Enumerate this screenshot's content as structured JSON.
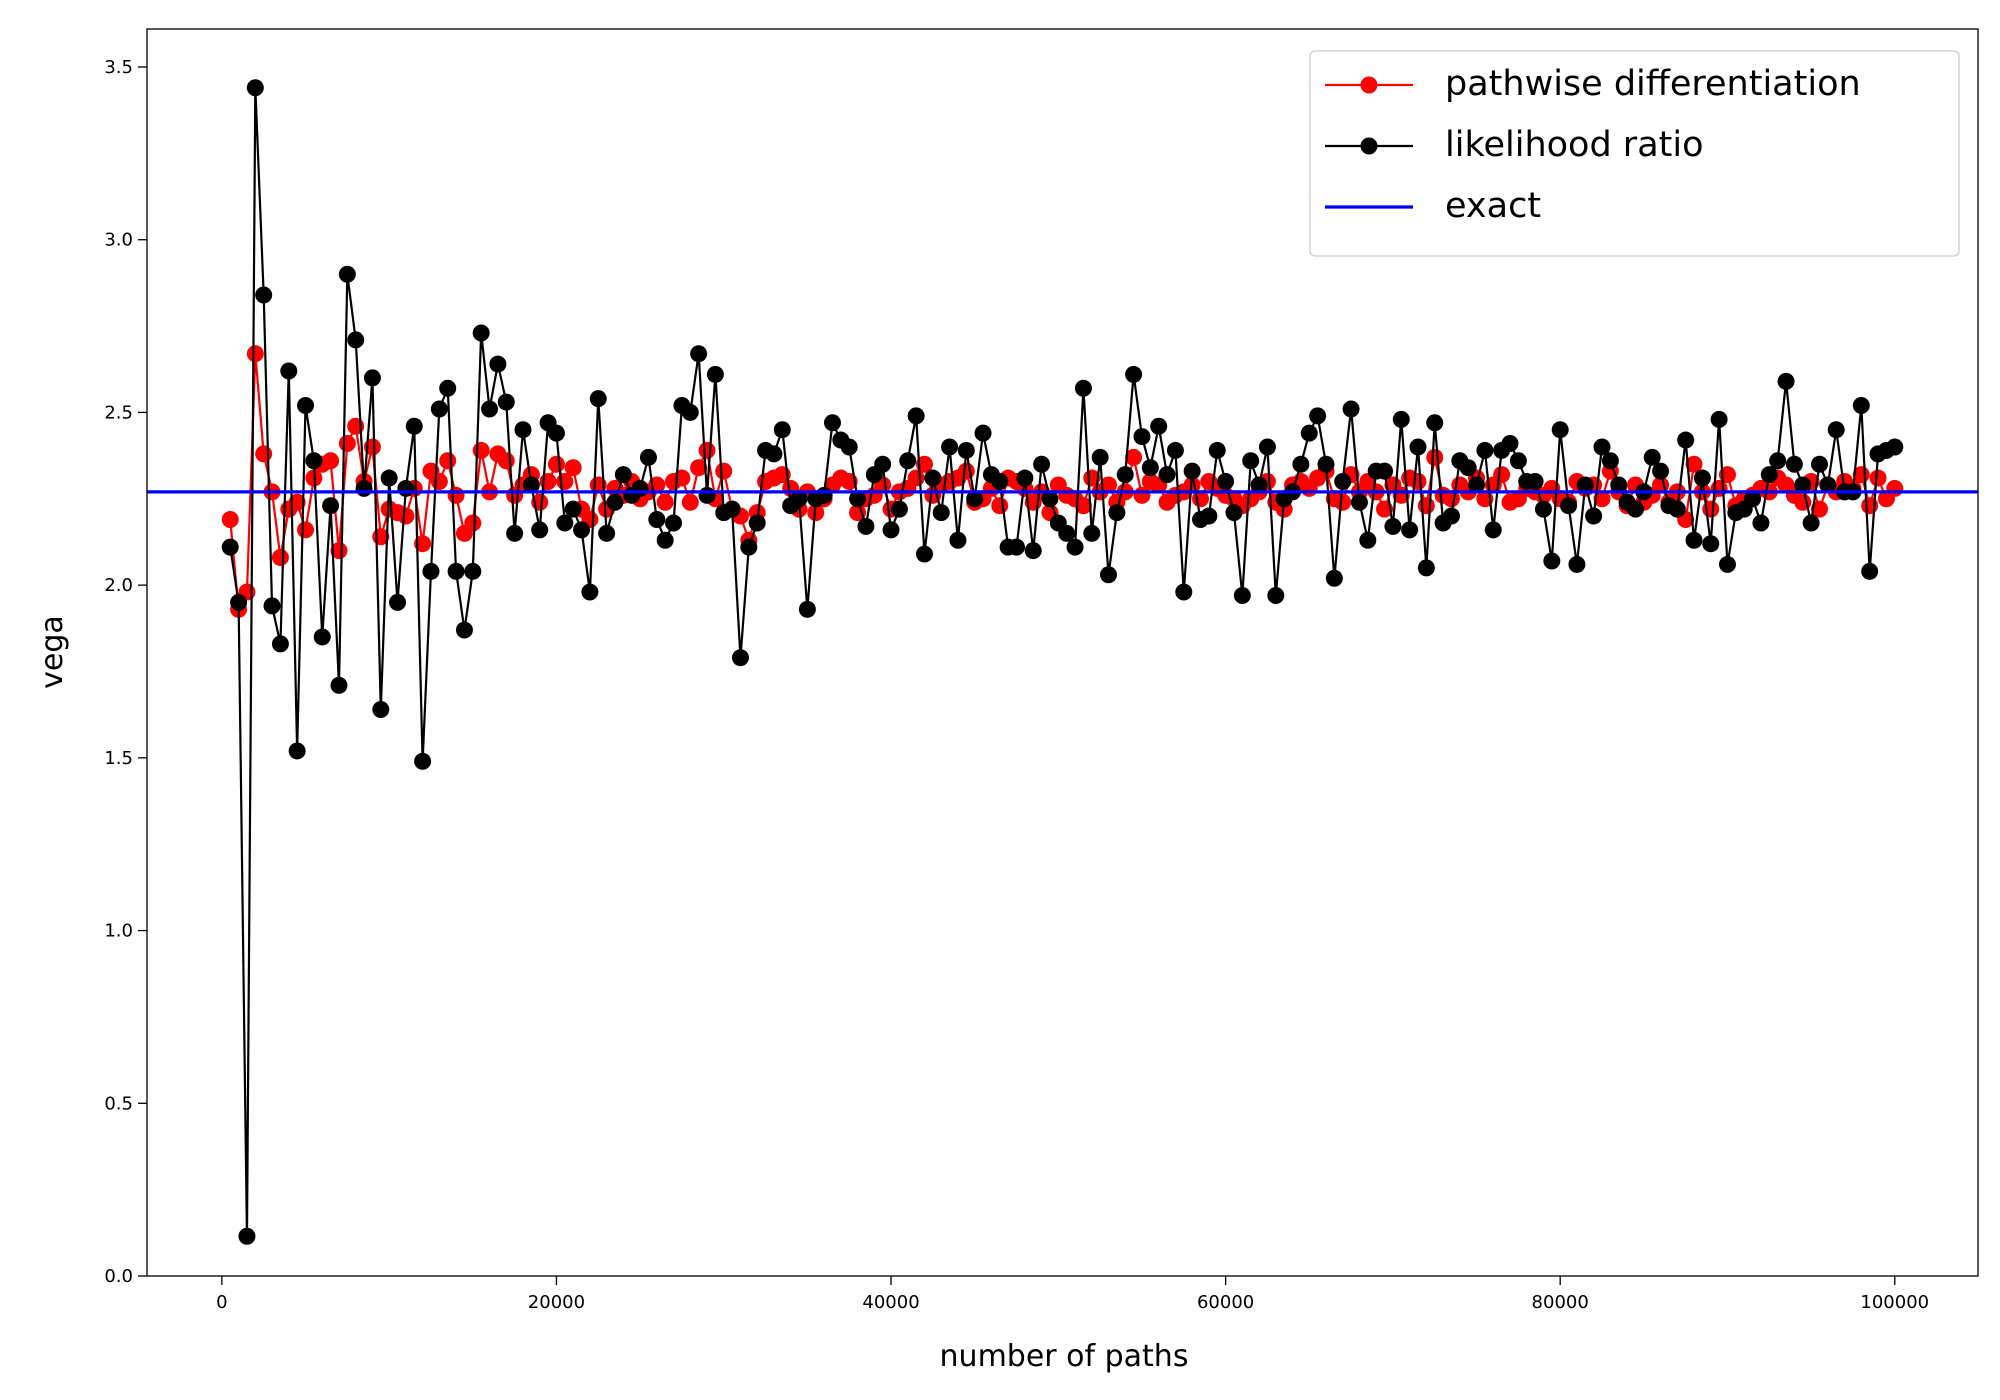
{
  "chart_data": {
    "type": "line",
    "xlabel": "number of paths",
    "ylabel": "vega",
    "xlim": [
      -4475,
      104975
    ],
    "ylim": [
      0,
      3.61
    ],
    "xticks": [
      0,
      20000,
      40000,
      60000,
      80000,
      100000
    ],
    "yticks": [
      {
        "value": 0,
        "label": "0.0"
      },
      0.5,
      {
        "value": 1,
        "label": "1.0"
      },
      1.5,
      {
        "value": 2,
        "label": "2.0"
      },
      2.5,
      {
        "value": 3,
        "label": "3.0"
      },
      3.5
    ],
    "grid": false,
    "legend": "upper right",
    "x": [
      500,
      1000,
      1500,
      2000,
      2500,
      3000,
      3500,
      4000,
      4500,
      5000,
      5500,
      6000,
      6500,
      7000,
      7500,
      8000,
      8500,
      9000,
      9500,
      10000,
      10500,
      11000,
      11500,
      12000,
      12500,
      13000,
      13500,
      14000,
      14500,
      15000,
      15500,
      16000,
      16500,
      17000,
      17500,
      18000,
      18500,
      19000,
      19500,
      20000,
      20500,
      21000,
      21500,
      22000,
      22500,
      23000,
      23500,
      24000,
      24500,
      25000,
      25500,
      26000,
      26500,
      27000,
      27500,
      28000,
      28500,
      29000,
      29500,
      30000,
      30500,
      31000,
      31500,
      32000,
      32500,
      33000,
      33500,
      34000,
      34500,
      35000,
      35500,
      36000,
      36500,
      37000,
      37500,
      38000,
      38500,
      39000,
      39500,
      40000,
      40500,
      41000,
      41500,
      42000,
      42500,
      43000,
      43500,
      44000,
      44500,
      45000,
      45500,
      46000,
      46500,
      47000,
      47500,
      48000,
      48500,
      49000,
      49500,
      50000,
      50500,
      51000,
      51500,
      52000,
      52500,
      53000,
      53500,
      54000,
      54500,
      55000,
      55500,
      56000,
      56500,
      57000,
      57500,
      58000,
      58500,
      59000,
      59500,
      60000,
      60500,
      61000,
      61500,
      62000,
      62500,
      63000,
      63500,
      64000,
      64500,
      65000,
      65500,
      66000,
      66500,
      67000,
      67500,
      68000,
      68500,
      69000,
      69500,
      70000,
      70500,
      71000,
      71500,
      72000,
      72500,
      73000,
      73500,
      74000,
      74500,
      75000,
      75500,
      76000,
      76500,
      77000,
      77500,
      78000,
      78500,
      79000,
      79500,
      80000,
      80500,
      81000,
      81500,
      82000,
      82500,
      83000,
      83500,
      84000,
      84500,
      85000,
      85500,
      86000,
      86500,
      87000,
      87500,
      88000,
      88500,
      89000,
      89500,
      90000,
      90500,
      91000,
      91500,
      92000,
      92500,
      93000,
      93500,
      94000,
      94500,
      95000,
      95500,
      96000,
      96500,
      97000,
      97500,
      98000,
      98500,
      99000,
      99500,
      100000
    ],
    "series": [
      {
        "name": "pathwise differentiation",
        "color": "#ff0000",
        "marker": "o",
        "values": [
          2.19,
          1.93,
          1.98,
          2.67,
          2.38,
          2.27,
          2.08,
          2.22,
          2.24,
          2.16,
          2.31,
          2.35,
          2.36,
          2.1,
          2.41,
          2.46,
          2.3,
          2.4,
          2.14,
          2.22,
          2.21,
          2.2,
          2.28,
          2.12,
          2.33,
          2.3,
          2.36,
          2.26,
          2.15,
          2.18,
          2.39,
          2.27,
          2.38,
          2.36,
          2.26,
          2.29,
          2.32,
          2.24,
          2.3,
          2.35,
          2.3,
          2.34,
          2.22,
          2.19,
          2.29,
          2.22,
          2.28,
          2.26,
          2.3,
          2.25,
          2.27,
          2.29,
          2.24,
          2.3,
          2.31,
          2.24,
          2.34,
          2.39,
          2.25,
          2.33,
          2.22,
          2.2,
          2.13,
          2.21,
          2.3,
          2.31,
          2.32,
          2.28,
          2.22,
          2.27,
          2.21,
          2.25,
          2.29,
          2.31,
          2.3,
          2.21,
          2.25,
          2.26,
          2.29,
          2.22,
          2.27,
          2.28,
          2.31,
          2.35,
          2.26,
          2.29,
          2.3,
          2.31,
          2.33,
          2.24,
          2.25,
          2.28,
          2.23,
          2.31,
          2.3,
          2.28,
          2.24,
          2.27,
          2.21,
          2.29,
          2.26,
          2.25,
          2.23,
          2.31,
          2.27,
          2.29,
          2.24,
          2.27,
          2.37,
          2.26,
          2.3,
          2.29,
          2.24,
          2.26,
          2.27,
          2.29,
          2.25,
          2.3,
          2.28,
          2.26,
          2.25,
          2.23,
          2.25,
          2.27,
          2.3,
          2.24,
          2.22,
          2.29,
          2.3,
          2.28,
          2.31,
          2.33,
          2.25,
          2.24,
          2.32,
          2.27,
          2.3,
          2.27,
          2.22,
          2.29,
          2.26,
          2.31,
          2.3,
          2.23,
          2.37,
          2.26,
          2.25,
          2.29,
          2.27,
          2.31,
          2.25,
          2.29,
          2.32,
          2.24,
          2.25,
          2.28,
          2.27,
          2.26,
          2.28,
          2.25,
          2.24,
          2.3,
          2.28,
          2.29,
          2.25,
          2.33,
          2.27,
          2.23,
          2.29,
          2.24,
          2.26,
          2.29,
          2.24,
          2.27,
          2.19,
          2.35,
          2.27,
          2.22,
          2.28,
          2.32,
          2.23,
          2.25,
          2.26,
          2.28,
          2.27,
          2.31,
          2.29,
          2.26,
          2.24,
          2.3,
          2.22,
          2.29,
          2.27,
          2.3,
          2.28,
          2.32,
          2.23,
          2.31,
          2.25,
          2.28
        ]
      },
      {
        "name": "likelihood ratio",
        "color": "#000000",
        "marker": "o",
        "values": [
          2.11,
          1.95,
          0.115,
          3.44,
          2.84,
          1.94,
          1.83,
          2.62,
          1.52,
          2.52,
          2.36,
          1.85,
          2.23,
          1.71,
          2.9,
          2.71,
          2.28,
          2.6,
          1.64,
          2.31,
          1.95,
          2.28,
          2.46,
          1.49,
          2.04,
          2.51,
          2.57,
          2.04,
          1.87,
          2.04,
          2.73,
          2.51,
          2.64,
          2.53,
          2.15,
          2.45,
          2.29,
          2.16,
          2.47,
          2.44,
          2.18,
          2.22,
          2.16,
          1.98,
          2.54,
          2.15,
          2.24,
          2.32,
          2.26,
          2.28,
          2.37,
          2.19,
          2.13,
          2.18,
          2.52,
          2.5,
          2.67,
          2.26,
          2.61,
          2.21,
          2.22,
          1.79,
          2.11,
          2.18,
          2.39,
          2.38,
          2.45,
          2.23,
          2.25,
          1.93,
          2.25,
          2.26,
          2.47,
          2.42,
          2.4,
          2.25,
          2.17,
          2.32,
          2.35,
          2.16,
          2.22,
          2.36,
          2.49,
          2.09,
          2.31,
          2.21,
          2.4,
          2.13,
          2.39,
          2.25,
          2.44,
          2.32,
          2.3,
          2.11,
          2.11,
          2.31,
          2.1,
          2.35,
          2.25,
          2.18,
          2.15,
          2.11,
          2.57,
          2.15,
          2.37,
          2.03,
          2.21,
          2.32,
          2.61,
          2.43,
          2.34,
          2.46,
          2.32,
          2.39,
          1.98,
          2.33,
          2.19,
          2.2,
          2.39,
          2.3,
          2.21,
          1.97,
          2.36,
          2.29,
          2.4,
          1.97,
          2.25,
          2.27,
          2.35,
          2.44,
          2.49,
          2.35,
          2.02,
          2.3,
          2.51,
          2.24,
          2.13,
          2.33,
          2.33,
          2.17,
          2.48,
          2.16,
          2.4,
          2.05,
          2.47,
          2.18,
          2.2,
          2.36,
          2.34,
          2.29,
          2.39,
          2.16,
          2.39,
          2.41,
          2.36,
          2.3,
          2.3,
          2.22,
          2.07,
          2.45,
          2.23,
          2.06,
          2.29,
          2.2,
          2.4,
          2.36,
          2.29,
          2.24,
          2.22,
          2.27,
          2.37,
          2.33,
          2.23,
          2.22,
          2.42,
          2.13,
          2.31,
          2.12,
          2.48,
          2.06,
          2.21,
          2.22,
          2.25,
          2.18,
          2.32,
          2.36,
          2.59,
          2.35,
          2.29,
          2.18,
          2.35,
          2.29,
          2.45,
          2.27,
          2.27,
          2.52,
          2.04,
          2.38,
          2.39,
          2.4
        ]
      }
    ],
    "hlines": [
      {
        "name": "exact",
        "color": "#0000ff",
        "value": 2.27
      }
    ]
  }
}
